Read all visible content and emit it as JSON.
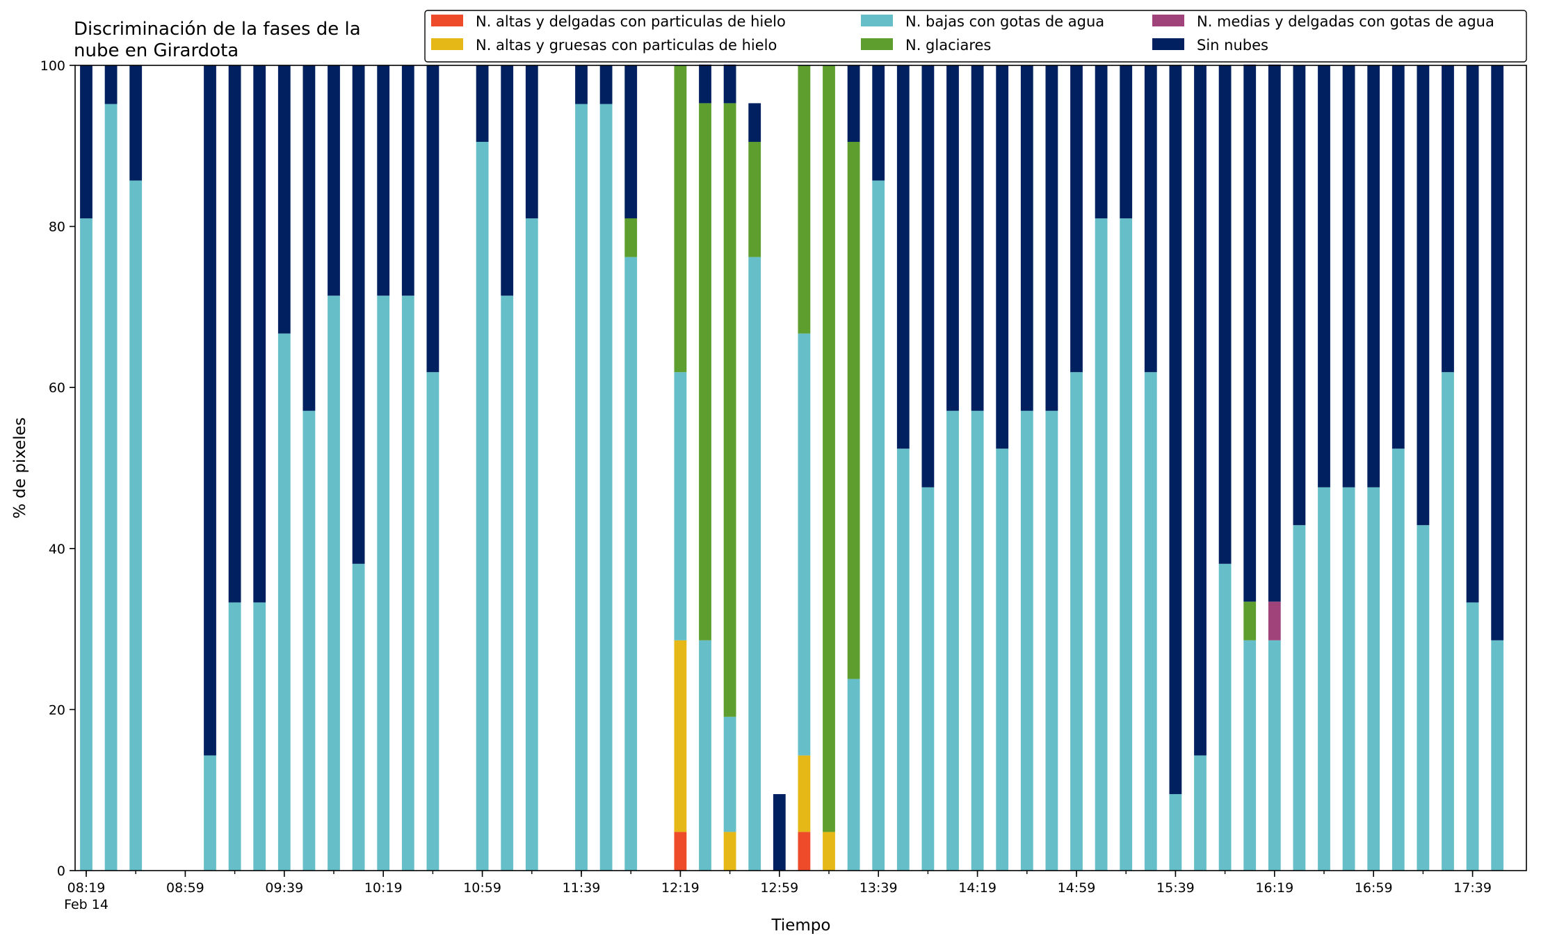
{
  "chart_data": {
    "type": "bar",
    "stacked": true,
    "title": "Discriminación de la fases de la\nnube en Girardota",
    "xlabel": "Tiempo",
    "ylabel": "% de pixeles",
    "ylim": [
      0,
      100
    ],
    "yticks": [
      0,
      20,
      40,
      60,
      80,
      100
    ],
    "grid": false,
    "legend_position": "top-right",
    "legend_columns": 3,
    "x_start": "08:19",
    "x_step_minutes": 10,
    "x_end": "17:49",
    "x_date_label": "Feb 14",
    "xtick_labels": [
      "08:19",
      "08:59",
      "09:39",
      "10:19",
      "10:59",
      "11:39",
      "12:19",
      "12:59",
      "13:39",
      "14:19",
      "14:59",
      "15:39",
      "16:19",
      "16:59",
      "17:39"
    ],
    "categories": [
      "08:19",
      "08:29",
      "08:39",
      "08:49",
      "08:59",
      "09:09",
      "09:19",
      "09:29",
      "09:39",
      "09:49",
      "09:59",
      "10:09",
      "10:19",
      "10:29",
      "10:39",
      "10:49",
      "10:59",
      "11:09",
      "11:19",
      "11:29",
      "11:39",
      "11:49",
      "11:59",
      "12:09",
      "12:19",
      "12:29",
      "12:39",
      "12:49",
      "12:59",
      "13:09",
      "13:19",
      "13:29",
      "13:39",
      "13:49",
      "13:59",
      "14:09",
      "14:19",
      "14:29",
      "14:39",
      "14:49",
      "14:59",
      "15:09",
      "15:19",
      "15:29",
      "15:39",
      "15:49",
      "15:59",
      "16:09",
      "16:19",
      "16:29",
      "16:39",
      "16:49",
      "16:59",
      "17:09",
      "17:19",
      "17:29",
      "17:39",
      "17:49"
    ],
    "series": [
      {
        "name": "N. altas y delgadas con particulas de hielo",
        "color": "#ee4b2b",
        "values": [
          0,
          0,
          0,
          null,
          null,
          0,
          0,
          0,
          0,
          0,
          0,
          0,
          0,
          0,
          0,
          null,
          0,
          0,
          0,
          null,
          0,
          0,
          0,
          null,
          4.8,
          0,
          0,
          0,
          0,
          4.8,
          0,
          0,
          0,
          0,
          0,
          0,
          0,
          0,
          0,
          0,
          0,
          0,
          0,
          0,
          0,
          0,
          0,
          0,
          0,
          0,
          0,
          0,
          0,
          0,
          0,
          0,
          0,
          0
        ]
      },
      {
        "name": "N. altas y gruesas con particulas de hielo",
        "color": "#e6b817",
        "values": [
          0,
          0,
          0,
          null,
          null,
          0,
          0,
          0,
          0,
          0,
          0,
          0,
          0,
          0,
          0,
          null,
          0,
          0,
          0,
          null,
          0,
          0,
          0,
          null,
          23.8,
          0,
          4.8,
          0,
          0,
          9.5,
          4.8,
          0,
          0,
          0,
          0,
          0,
          0,
          0,
          0,
          0,
          0,
          0,
          0,
          0,
          0,
          0,
          0,
          0,
          0,
          0,
          0,
          0,
          0,
          0,
          0,
          0,
          0,
          0
        ]
      },
      {
        "name": "N. bajas con gotas de agua",
        "color": "#66bec9",
        "values": [
          81,
          95.2,
          85.7,
          null,
          null,
          14.3,
          33.3,
          33.3,
          66.7,
          57.1,
          71.4,
          38.1,
          71.4,
          71.4,
          61.9,
          null,
          90.5,
          71.4,
          81,
          null,
          95.2,
          95.2,
          76.2,
          null,
          33.3,
          28.6,
          14.3,
          76.2,
          0,
          52.4,
          0,
          23.8,
          85.7,
          52.4,
          47.6,
          57.1,
          57.1,
          52.4,
          57.1,
          57.1,
          61.9,
          81,
          81,
          61.9,
          9.5,
          14.3,
          38.1,
          28.6,
          28.6,
          42.9,
          47.6,
          47.6,
          47.6,
          52.4,
          42.9,
          61.9,
          33.3,
          28.6
        ]
      },
      {
        "name": "N. glaciares",
        "color": "#5e9e2e",
        "values": [
          0,
          0,
          0,
          null,
          null,
          0,
          0,
          0,
          0,
          0,
          0,
          0,
          0,
          0,
          0,
          null,
          0,
          0,
          0,
          null,
          0,
          0,
          4.8,
          null,
          38.1,
          66.7,
          76.2,
          14.3,
          0,
          33.3,
          95.2,
          66.7,
          0,
          0,
          0,
          0,
          0,
          0,
          0,
          0,
          0,
          0,
          0,
          0,
          0,
          0,
          0,
          4.8,
          0,
          0,
          0,
          0,
          0,
          0,
          0,
          0,
          0,
          0
        ]
      },
      {
        "name": "N. medias y delgadas con gotas de agua",
        "color": "#a0437a",
        "values": [
          0,
          0,
          0,
          null,
          null,
          0,
          0,
          0,
          0,
          0,
          0,
          0,
          0,
          0,
          0,
          null,
          0,
          0,
          0,
          null,
          0,
          0,
          0,
          null,
          0,
          0,
          0,
          0,
          0,
          0,
          0,
          0,
          0,
          0,
          0,
          0,
          0,
          0,
          0,
          0,
          0,
          0,
          0,
          0,
          0,
          0,
          0,
          0,
          4.8,
          0,
          0,
          0,
          0,
          0,
          0,
          0,
          0,
          0
        ]
      },
      {
        "name": "Sin nubes",
        "color": "#002060",
        "values": [
          19,
          4.8,
          14.3,
          null,
          null,
          85.7,
          66.7,
          66.7,
          33.3,
          42.9,
          28.6,
          61.9,
          28.6,
          28.6,
          38.1,
          null,
          9.5,
          28.6,
          19,
          null,
          4.8,
          4.8,
          19,
          null,
          0,
          4.8,
          4.8,
          4.8,
          9.5,
          0,
          0,
          9.5,
          14.3,
          47.6,
          52.4,
          42.9,
          42.9,
          47.6,
          42.9,
          42.9,
          38.1,
          19,
          19,
          38.1,
          90.5,
          85.7,
          61.9,
          66.7,
          66.7,
          57.1,
          52.4,
          52.4,
          52.4,
          47.6,
          57.1,
          38.1,
          66.7,
          71.4
        ]
      }
    ]
  }
}
